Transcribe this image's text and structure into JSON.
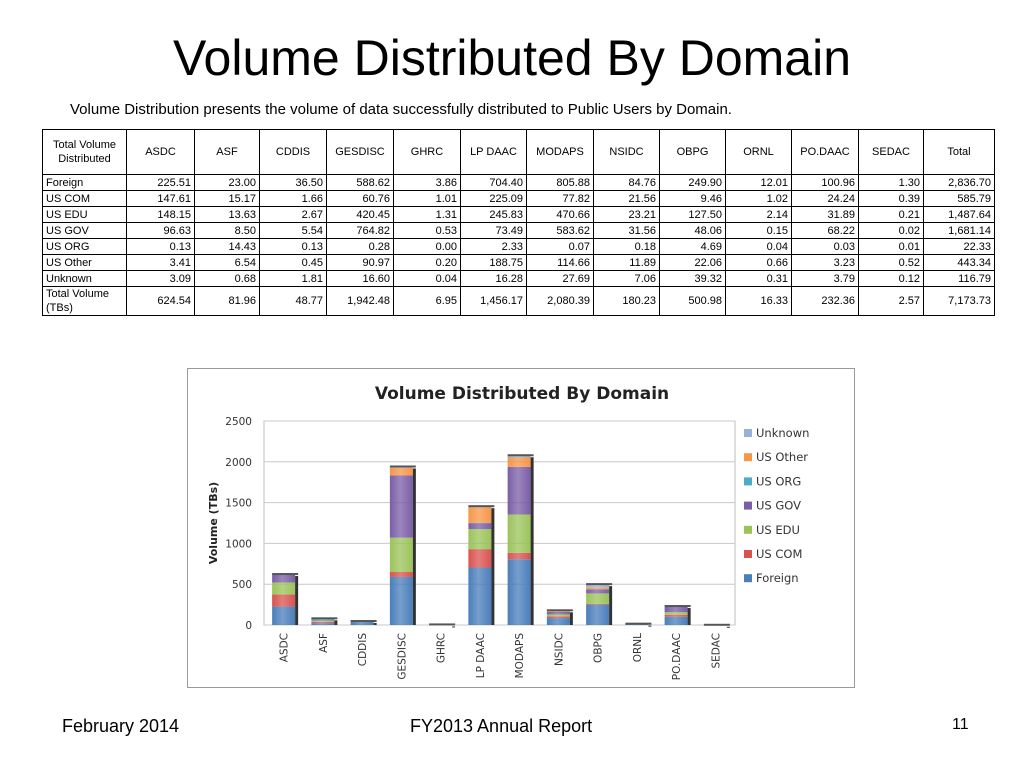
{
  "slide": {
    "title": "Volume Distributed By Domain",
    "subtitle": "Volume Distribution presents the volume of data successfully distributed to Public Users by Domain."
  },
  "table": {
    "corner_header": "Total Volume Distributed",
    "columns": [
      "ASDC",
      "ASF",
      "CDDIS",
      "GESDISC",
      "GHRC",
      "LP DAAC",
      "MODAPS",
      "NSIDC",
      "OBPG",
      "ORNL",
      "PO.DAAC",
      "SEDAC",
      "Total"
    ],
    "rows": [
      {
        "label": "Foreign",
        "values": [
          "225.51",
          "23.00",
          "36.50",
          "588.62",
          "3.86",
          "704.40",
          "805.88",
          "84.76",
          "249.90",
          "12.01",
          "100.96",
          "1.30",
          "2,836.70"
        ]
      },
      {
        "label": "US COM",
        "values": [
          "147.61",
          "15.17",
          "1.66",
          "60.76",
          "1.01",
          "225.09",
          "77.82",
          "21.56",
          "9.46",
          "1.02",
          "24.24",
          "0.39",
          "585.79"
        ]
      },
      {
        "label": "US EDU",
        "values": [
          "148.15",
          "13.63",
          "2.67",
          "420.45",
          "1.31",
          "245.83",
          "470.66",
          "23.21",
          "127.50",
          "2.14",
          "31.89",
          "0.21",
          "1,487.64"
        ]
      },
      {
        "label": "US GOV",
        "values": [
          "96.63",
          "8.50",
          "5.54",
          "764.82",
          "0.53",
          "73.49",
          "583.62",
          "31.56",
          "48.06",
          "0.15",
          "68.22",
          "0.02",
          "1,681.14"
        ]
      },
      {
        "label": "US ORG",
        "values": [
          "0.13",
          "14.43",
          "0.13",
          "0.28",
          "0.00",
          "2.33",
          "0.07",
          "0.18",
          "4.69",
          "0.04",
          "0.03",
          "0.01",
          "22.33"
        ]
      },
      {
        "label": "US Other",
        "values": [
          "3.41",
          "6.54",
          "0.45",
          "90.97",
          "0.20",
          "188.75",
          "114.66",
          "11.89",
          "22.06",
          "0.66",
          "3.23",
          "0.52",
          "443.34"
        ]
      },
      {
        "label": "Unknown",
        "values": [
          "3.09",
          "0.68",
          "1.81",
          "16.60",
          "0.04",
          "16.28",
          "27.69",
          "7.06",
          "39.32",
          "0.31",
          "3.79",
          "0.12",
          "116.79"
        ]
      },
      {
        "label": "Total Volume (TBs)",
        "values": [
          "624.54",
          "81.96",
          "48.77",
          "1,942.48",
          "6.95",
          "1,456.17",
          "2,080.39",
          "180.23",
          "500.98",
          "16.33",
          "232.36",
          "2.57",
          "7,173.73"
        ]
      }
    ]
  },
  "chart_data": {
    "type": "bar",
    "stacked": true,
    "title": "Volume Distributed By Domain",
    "xlabel": "",
    "ylabel": "Volume (TBs)",
    "ylim": [
      0,
      2500
    ],
    "yticks": [
      0,
      500,
      1000,
      1500,
      2000,
      2500
    ],
    "grid": true,
    "legend": "right",
    "categories": [
      "ASDC",
      "ASF",
      "CDDIS",
      "GESDISC",
      "GHRC",
      "LP DAAC",
      "MODAPS",
      "NSIDC",
      "OBPG",
      "ORNL",
      "PO.DAAC",
      "SEDAC"
    ],
    "series": [
      {
        "name": "Foreign",
        "color": "#4a7ebb",
        "values": [
          225.51,
          23.0,
          36.5,
          588.62,
          3.86,
          704.4,
          805.88,
          84.76,
          249.9,
          12.01,
          100.96,
          1.3
        ]
      },
      {
        "name": "US COM",
        "color": "#d9534f",
        "values": [
          147.61,
          15.17,
          1.66,
          60.76,
          1.01,
          225.09,
          77.82,
          21.56,
          9.46,
          1.02,
          24.24,
          0.39
        ]
      },
      {
        "name": "US EDU",
        "color": "#9bc35a",
        "values": [
          148.15,
          13.63,
          2.67,
          420.45,
          1.31,
          245.83,
          470.66,
          23.21,
          127.5,
          2.14,
          31.89,
          0.21
        ]
      },
      {
        "name": "US GOV",
        "color": "#7b5ea7",
        "values": [
          96.63,
          8.5,
          5.54,
          764.82,
          0.53,
          73.49,
          583.62,
          31.56,
          48.06,
          0.15,
          68.22,
          0.02
        ]
      },
      {
        "name": "US ORG",
        "color": "#4bacc6",
        "values": [
          0.13,
          14.43,
          0.13,
          0.28,
          0.0,
          2.33,
          0.07,
          0.18,
          4.69,
          0.04,
          0.03,
          0.01
        ]
      },
      {
        "name": "US Other",
        "color": "#f79646",
        "values": [
          3.41,
          6.54,
          0.45,
          90.97,
          0.2,
          188.75,
          114.66,
          11.89,
          22.06,
          0.66,
          3.23,
          0.52
        ]
      },
      {
        "name": "Unknown",
        "color": "#95b3d7",
        "values": [
          3.09,
          0.68,
          1.81,
          16.6,
          0.04,
          16.28,
          27.69,
          7.06,
          39.32,
          0.31,
          3.79,
          0.12
        ]
      }
    ]
  },
  "footer": {
    "date": "February 2014",
    "report": "FY2013 Annual Report",
    "page": "11"
  }
}
